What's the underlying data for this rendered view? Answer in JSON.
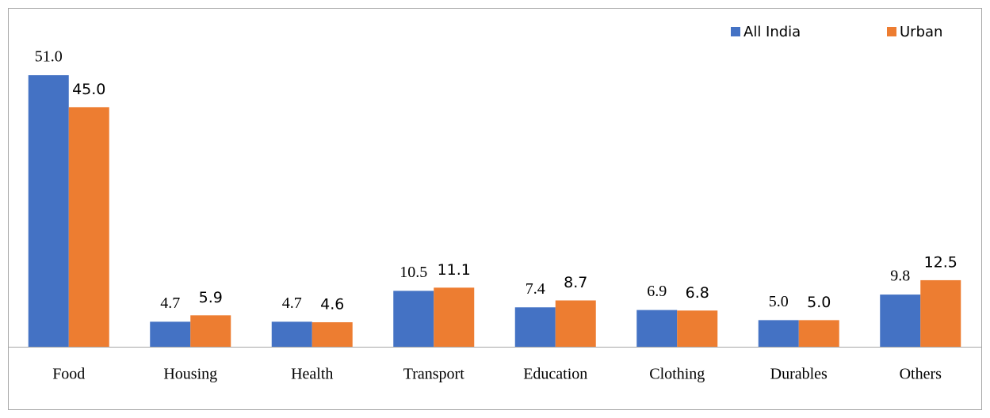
{
  "chart_data": {
    "type": "bar",
    "categories": [
      "Food",
      "Housing",
      "Health",
      "Transport",
      "Education",
      "Clothing",
      "Durables",
      "Others"
    ],
    "series": [
      {
        "name": "All India",
        "color": "#4472c4",
        "values": [
          51.0,
          4.7,
          4.7,
          10.5,
          7.4,
          6.9,
          5.0,
          9.8
        ],
        "value_labels": [
          "51.0",
          "4.7",
          "4.7",
          "10.5",
          "7.4",
          "6.9",
          "5.0",
          "9.8"
        ]
      },
      {
        "name": "Urban",
        "color": "#ed7d31",
        "values": [
          45.0,
          5.9,
          4.6,
          11.1,
          8.7,
          6.8,
          5.0,
          12.5
        ],
        "value_labels": [
          "45.0",
          "5.9",
          "4.6",
          "11.1",
          "8.7",
          "6.8",
          "5.0",
          "12.5"
        ]
      }
    ],
    "legend": "top-right"
  }
}
